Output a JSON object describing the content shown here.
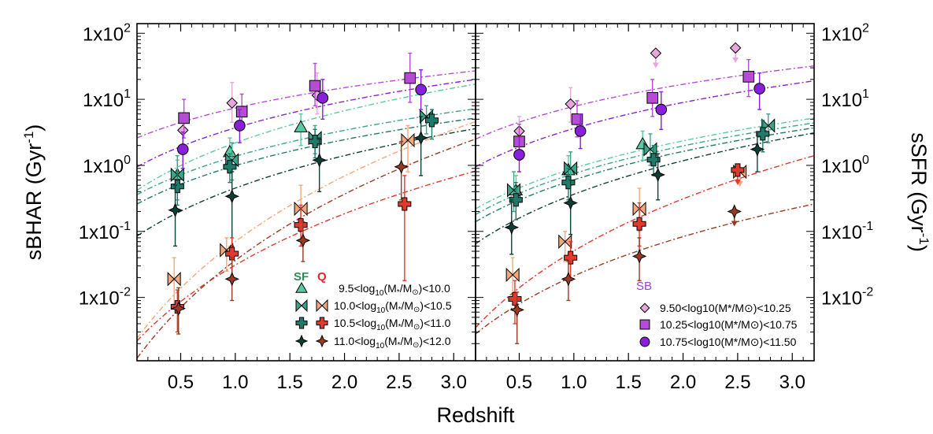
{
  "figure": {
    "xlabel": "Redshift",
    "ylabel_left": "sBHAR (Gyr",
    "ylabel_right": "sSFR (Gyr",
    "ylabel_exp": "-1",
    "ylabel_close": ")",
    "y_ticks": [
      {
        "value": 100,
        "mant": "1x10",
        "exp": "2"
      },
      {
        "value": 10,
        "mant": "1x10",
        "exp": "1"
      },
      {
        "value": 1,
        "mant": "1x10",
        "exp": "0"
      },
      {
        "value": 0.1,
        "mant": "1x10",
        "exp": "-1"
      },
      {
        "value": 0.01,
        "mant": "1x10",
        "exp": "-2"
      }
    ],
    "x_ticks": [
      {
        "value": 0.5,
        "label": "0.5"
      },
      {
        "value": 1.0,
        "label": "1.0"
      },
      {
        "value": 1.5,
        "label": "1.5"
      },
      {
        "value": 2.0,
        "label": "2.0"
      },
      {
        "value": 2.5,
        "label": "2.5"
      },
      {
        "value": 3.0,
        "label": "3.0"
      }
    ],
    "colors": {
      "sf1": "#5cc9a0",
      "sf2": "#3aa58a",
      "sf3": "#1f7a6a",
      "sf4": "#0e3f36",
      "q2": "#f3a87a",
      "q3": "#e03a2e",
      "q4": "#9a3a22",
      "sb1": "#e9a6de",
      "sb2": "#b64bd4",
      "sb3": "#8a1fd9"
    }
  },
  "legend_left": {
    "sf_header": "SF",
    "q_header": "Q",
    "rows": [
      {
        "pre": "9.5<log",
        "sub": "10",
        "mid": "(M",
        "star": "*",
        "slash": "/M",
        "sun": "⊙",
        "post": ")<10.0"
      },
      {
        "pre": "10.0<log",
        "sub": "10",
        "mid": "(M",
        "star": "*",
        "slash": "/M",
        "sun": "⊙",
        "post": ")<10.5"
      },
      {
        "pre": "10.5<log",
        "sub": "10",
        "mid": "(M",
        "star": "*",
        "slash": "/M",
        "sun": "⊙",
        "post": ")<11.0"
      },
      {
        "pre": "11.0<log",
        "sub": "10",
        "mid": "(M",
        "star": "*",
        "slash": "/M",
        "sun": "⊙",
        "post": ")<12.0"
      }
    ]
  },
  "legend_right": {
    "header": "SB",
    "rows": [
      {
        "label": "9.50<log10(M*/M⊙)<10.25"
      },
      {
        "label": "10.25<log10(M*/M⊙)<10.75"
      },
      {
        "label": "10.75<log10(M*/M⊙)<11.50"
      }
    ]
  },
  "chart_data": [
    {
      "type": "scatter",
      "panel": "left",
      "ylabel": "sBHAR (Gyr-1)",
      "xlabel": "Redshift",
      "xlim": [
        0.1,
        3.2
      ],
      "ylim": [
        0.0011,
        140
      ],
      "yscale": "log",
      "series": [
        {
          "key": "sf1",
          "marker": "triangle",
          "color": "#5cc9a0",
          "points": [
            {
              "x": 0.47,
              "y": 0.72,
              "lo": 0.45,
              "hi": 1.2
            },
            {
              "x": 0.95,
              "y": 1.6,
              "lo": 1.0,
              "hi": 2.6
            },
            {
              "x": 1.6,
              "y": 3.8,
              "lo": 2.0,
              "hi": 6.0
            }
          ]
        },
        {
          "key": "sf2",
          "marker": "bowtie",
          "color": "#3aa58a",
          "points": [
            {
              "x": 0.47,
              "y": 0.72,
              "lo": 0.3,
              "hi": 1.4
            },
            {
              "x": 0.97,
              "y": 1.2,
              "lo": 0.6,
              "hi": 2.2
            },
            {
              "x": 1.73,
              "y": 2.6,
              "lo": 1.5,
              "hi": 4.0
            },
            {
              "x": 2.75,
              "y": 5.5,
              "lo": 3.0,
              "hi": 8.0
            }
          ]
        },
        {
          "key": "sf3",
          "marker": "cross",
          "color": "#1f7a6a",
          "points": [
            {
              "x": 0.47,
              "y": 0.48,
              "lo": 0.25,
              "hi": 0.8
            },
            {
              "x": 0.95,
              "y": 0.95,
              "lo": 0.55,
              "hi": 1.5
            },
            {
              "x": 1.73,
              "y": 2.3,
              "lo": 1.3,
              "hi": 3.5
            },
            {
              "x": 2.8,
              "y": 4.8,
              "lo": 2.5,
              "hi": 7.0
            }
          ]
        },
        {
          "key": "sf4",
          "marker": "star",
          "color": "#0e3f36",
          "points": [
            {
              "x": 0.45,
              "y": 0.21,
              "lo": 0.06,
              "hi": 0.5
            },
            {
              "x": 0.97,
              "y": 0.34,
              "lo": 0.06,
              "hi": 0.8
            },
            {
              "x": 1.77,
              "y": 1.2,
              "lo": 0.4,
              "hi": 2.6
            },
            {
              "x": 2.7,
              "y": 2.6,
              "lo": 0.7,
              "hi": 5.5
            }
          ]
        },
        {
          "key": "q2",
          "marker": "bowtie",
          "color": "#f3a87a",
          "points": [
            {
              "x": 0.44,
              "y": 0.019,
              "lo": 0.008,
              "hi": 0.04
            },
            {
              "x": 0.92,
              "y": 0.052,
              "lo": 0.025,
              "hi": 0.08
            },
            {
              "x": 1.6,
              "y": 0.22,
              "lo": 0.11,
              "hi": 0.5
            },
            {
              "x": 2.58,
              "y": 2.4,
              "lo": 0.8,
              "hi": 4.0
            }
          ]
        },
        {
          "key": "q3",
          "marker": "cross",
          "color": "#e03a2e",
          "points": [
            {
              "x": 0.47,
              "y": 0.0072,
              "lo": 0.003,
              "hi": 0.013
            },
            {
              "x": 0.97,
              "y": 0.046,
              "lo": 0.02,
              "hi": 0.08
            },
            {
              "x": 1.6,
              "y": 0.125,
              "lo": 0.06,
              "hi": 0.25
            },
            {
              "x": 2.55,
              "y": 0.26,
              "lo": 0.018,
              "hi": 0.7
            }
          ]
        },
        {
          "key": "q4",
          "marker": "star",
          "color": "#9a3a22",
          "points": [
            {
              "x": 0.48,
              "y": 0.0068,
              "lo": 0.0028,
              "hi": 0.014
            },
            {
              "x": 0.97,
              "y": 0.019,
              "lo": 0.009,
              "hi": 0.04
            },
            {
              "x": 1.62,
              "y": 0.073,
              "lo": 0.035,
              "hi": 0.14
            },
            {
              "x": 2.52,
              "y": 0.95,
              "lo": 0.3,
              "hi": 2.3
            }
          ]
        },
        {
          "key": "sb1",
          "marker": "diamond",
          "color": "#e9a6de",
          "points": [
            {
              "x": 0.52,
              "y": 3.4,
              "lo": 2.0,
              "hi": 6.0
            },
            {
              "x": 0.97,
              "y": 8.8,
              "lo": 4.5,
              "hi": 18
            },
            {
              "x": 1.75,
              "y": 11.5,
              "lo": 6,
              "hi": 25
            }
          ]
        },
        {
          "key": "sb2",
          "marker": "square",
          "color": "#b64bd4",
          "points": [
            {
              "x": 0.53,
              "y": 5.2,
              "lo": 2.6,
              "hi": 10
            },
            {
              "x": 1.06,
              "y": 6.5,
              "lo": 3.5,
              "hi": 12
            },
            {
              "x": 1.73,
              "y": 16,
              "lo": 8,
              "hi": 35
            },
            {
              "x": 2.6,
              "y": 21,
              "lo": 9,
              "hi": 50
            }
          ]
        },
        {
          "key": "sb3",
          "marker": "circle",
          "color": "#8a1fd9",
          "points": [
            {
              "x": 0.52,
              "y": 1.75,
              "lo": 0.9,
              "hi": 3.2
            },
            {
              "x": 1.04,
              "y": 4.0,
              "lo": 2.2,
              "hi": 7.0
            },
            {
              "x": 1.8,
              "y": 10.5,
              "lo": 5,
              "hi": 20
            },
            {
              "x": 2.7,
              "y": 14,
              "lo": 7,
              "hi": 28
            }
          ]
        }
      ],
      "fits": [
        {
          "color": "#b64bd4",
          "anchors": [
            [
              0.1,
              2.6
            ],
            [
              3.2,
              27
            ]
          ]
        },
        {
          "color": "#8a1fd9",
          "anchors": [
            [
              0.1,
              0.95
            ],
            [
              3.2,
              20
            ]
          ]
        },
        {
          "color": "#5cc9a0",
          "anchors": [
            [
              0.1,
              0.42
            ],
            [
              3.2,
              17
            ]
          ]
        },
        {
          "color": "#3aa58a",
          "anchors": [
            [
              0.1,
              0.36
            ],
            [
              3.2,
              7.2
            ]
          ]
        },
        {
          "color": "#1f7a6a",
          "anchors": [
            [
              0.1,
              0.26
            ],
            [
              3.2,
              5.2
            ]
          ]
        },
        {
          "color": "#0e3f36",
          "anchors": [
            [
              0.1,
              0.085
            ],
            [
              3.2,
              3.6
            ]
          ]
        },
        {
          "color": "#f3a87a",
          "anchors": [
            [
              0.1,
              0.0024
            ],
            [
              3.2,
              4.6
            ]
          ]
        },
        {
          "color": "#e03a2e",
          "anchors": [
            [
              0.1,
              0.0022
            ],
            [
              3.2,
              0.82
            ]
          ]
        },
        {
          "color": "#9a3a22",
          "anchors": [
            [
              0.1,
              0.0012
            ],
            [
              3.2,
              2.5
            ]
          ]
        }
      ]
    },
    {
      "type": "scatter",
      "panel": "right",
      "ylabel": "sSFR (Gyr-1)",
      "xlabel": "Redshift",
      "xlim": [
        0.1,
        3.2
      ],
      "ylim": [
        0.0011,
        140
      ],
      "yscale": "log",
      "series": [
        {
          "key": "sf1",
          "marker": "triangle",
          "color": "#5cc9a0",
          "points": [
            {
              "x": 0.47,
              "y": 0.42,
              "lo": 0.25,
              "hi": 0.7
            },
            {
              "x": 0.95,
              "y": 0.85,
              "lo": 0.5,
              "hi": 1.4
            },
            {
              "x": 1.63,
              "y": 2.1,
              "lo": 1.2,
              "hi": 3.3
            }
          ]
        },
        {
          "key": "sf2",
          "marker": "bowtie",
          "color": "#3aa58a",
          "points": [
            {
              "x": 0.45,
              "y": 0.42,
              "lo": 0.2,
              "hi": 0.8
            },
            {
              "x": 0.97,
              "y": 0.9,
              "lo": 0.5,
              "hi": 1.6
            },
            {
              "x": 1.7,
              "y": 1.75,
              "lo": 1.0,
              "hi": 3.0
            },
            {
              "x": 2.78,
              "y": 4.0,
              "lo": 2.2,
              "hi": 6.0
            }
          ]
        },
        {
          "key": "sf3",
          "marker": "cross",
          "color": "#1f7a6a",
          "points": [
            {
              "x": 0.47,
              "y": 0.3,
              "lo": 0.15,
              "hi": 0.55
            },
            {
              "x": 0.95,
              "y": 0.55,
              "lo": 0.3,
              "hi": 0.9
            },
            {
              "x": 1.73,
              "y": 1.22,
              "lo": 0.7,
              "hi": 2.0
            },
            {
              "x": 2.73,
              "y": 3.0,
              "lo": 1.6,
              "hi": 4.8
            }
          ]
        },
        {
          "key": "sf4",
          "marker": "star",
          "color": "#0e3f36",
          "points": [
            {
              "x": 0.43,
              "y": 0.115,
              "lo": 0.045,
              "hi": 0.3
            },
            {
              "x": 0.97,
              "y": 0.27,
              "lo": 0.09,
              "hi": 0.6
            },
            {
              "x": 1.77,
              "y": 0.72,
              "lo": 0.3,
              "hi": 1.5
            },
            {
              "x": 2.68,
              "y": 1.75,
              "lo": 0.8,
              "hi": 3.2
            }
          ]
        },
        {
          "key": "q2",
          "marker": "bowtie",
          "color": "#f3a87a",
          "points": [
            {
              "x": 0.44,
              "y": 0.022,
              "lo": 0.01,
              "hi": 0.04
            },
            {
              "x": 0.92,
              "y": 0.07,
              "lo": 0.035,
              "hi": 0.1
            },
            {
              "x": 1.6,
              "y": 0.22,
              "lo": 0.1,
              "hi": 0.45
            },
            {
              "x": 2.52,
              "y": 0.8,
              "up": true
            }
          ]
        },
        {
          "key": "q3",
          "marker": "cross",
          "color": "#e03a2e",
          "points": [
            {
              "x": 0.46,
              "y": 0.0095,
              "lo": 0.004,
              "hi": 0.018
            },
            {
              "x": 0.97,
              "y": 0.04,
              "lo": 0.018,
              "hi": 0.07
            },
            {
              "x": 1.6,
              "y": 0.13,
              "lo": 0.06,
              "hi": 0.27
            },
            {
              "x": 2.5,
              "y": 0.85,
              "up": true
            }
          ]
        },
        {
          "key": "q4",
          "marker": "star",
          "color": "#9a3a22",
          "points": [
            {
              "x": 0.48,
              "y": 0.0065,
              "lo": 0.002,
              "hi": 0.012
            },
            {
              "x": 0.95,
              "y": 0.019,
              "lo": 0.009,
              "hi": 0.035
            },
            {
              "x": 1.6,
              "y": 0.042,
              "lo": 0.018,
              "hi": 0.08
            },
            {
              "x": 2.47,
              "y": 0.2,
              "up": true
            }
          ]
        },
        {
          "key": "sb1",
          "marker": "diamond",
          "color": "#e9a6de",
          "points": [
            {
              "x": 0.5,
              "y": 3.3,
              "lo": 2.0,
              "hi": 5.5
            },
            {
              "x": 0.97,
              "y": 8.5,
              "lo": 4.5,
              "hi": 15
            },
            {
              "x": 1.75,
              "y": 50,
              "up": true
            },
            {
              "x": 2.48,
              "y": 60,
              "up": true
            }
          ]
        },
        {
          "key": "sb2",
          "marker": "square",
          "color": "#b64bd4",
          "points": [
            {
              "x": 0.5,
              "y": 2.3,
              "lo": 1.2,
              "hi": 4.2
            },
            {
              "x": 1.03,
              "y": 5.0,
              "lo": 2.7,
              "hi": 9.5
            },
            {
              "x": 1.72,
              "y": 10.5,
              "lo": 5.5,
              "hi": 20
            },
            {
              "x": 2.6,
              "y": 22,
              "lo": 11,
              "hi": 40
            }
          ]
        },
        {
          "key": "sb3",
          "marker": "circle",
          "color": "#8a1fd9",
          "points": [
            {
              "x": 0.5,
              "y": 1.45,
              "lo": 0.8,
              "hi": 2.7
            },
            {
              "x": 1.06,
              "y": 3.3,
              "lo": 1.8,
              "hi": 6.0
            },
            {
              "x": 1.8,
              "y": 7.0,
              "lo": 3.5,
              "hi": 13
            },
            {
              "x": 2.7,
              "y": 14.5,
              "lo": 7,
              "hi": 25
            }
          ]
        }
      ],
      "fits": [
        {
          "color": "#b64bd4",
          "anchors": [
            [
              0.1,
              2.5
            ],
            [
              3.2,
              32
            ]
          ]
        },
        {
          "color": "#8a1fd9",
          "anchors": [
            [
              0.1,
              0.95
            ],
            [
              3.2,
              19
            ]
          ]
        },
        {
          "color": "#5cc9a0",
          "anchors": [
            [
              0.1,
              0.22
            ],
            [
              3.2,
              5.2
            ]
          ]
        },
        {
          "color": "#3aa58a",
          "anchors": [
            [
              0.1,
              0.18
            ],
            [
              3.2,
              4.4
            ]
          ]
        },
        {
          "color": "#1f7a6a",
          "anchors": [
            [
              0.1,
              0.14
            ],
            [
              3.2,
              3.7
            ]
          ]
        },
        {
          "color": "#0e3f36",
          "anchors": [
            [
              0.1,
              0.065
            ],
            [
              3.2,
              3.1
            ]
          ]
        },
        {
          "color": "#e03a2e",
          "anchors": [
            [
              0.1,
              0.0035
            ],
            [
              3.2,
              1.4
            ]
          ]
        },
        {
          "color": "#9a3a22",
          "anchors": [
            [
              0.1,
              0.0028
            ],
            [
              3.2,
              0.26
            ]
          ]
        }
      ]
    }
  ]
}
